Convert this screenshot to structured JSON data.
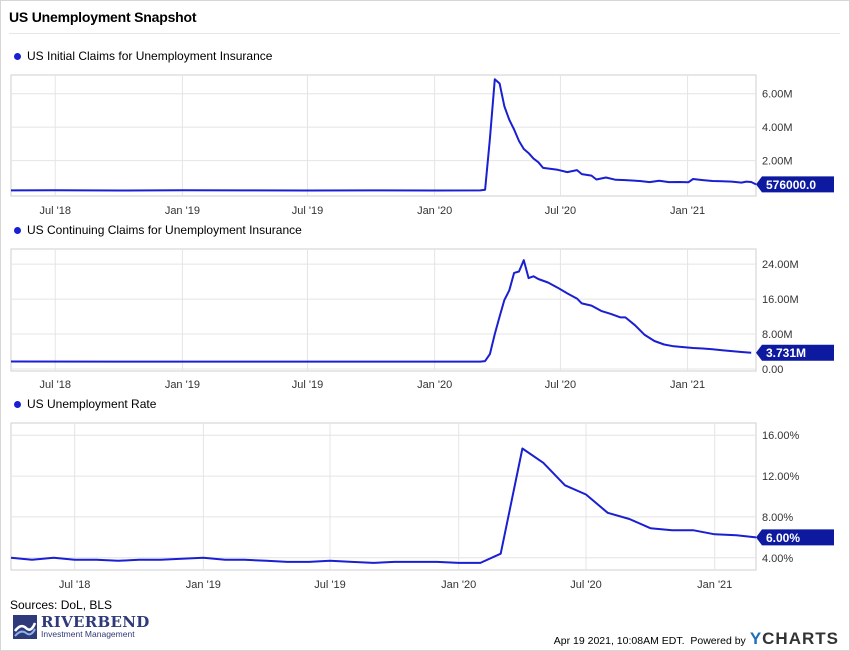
{
  "header": {
    "title": "US Unemployment Snapshot"
  },
  "colors": {
    "line": "#1a1fd1",
    "grid": "#e4e4e4",
    "axis_text": "#333333",
    "label_bg": "#0d1aa0",
    "label_text": "#ffffff"
  },
  "chart_data": [
    {
      "type": "line",
      "series": [
        {
          "name": "US Initial Claims for Unemployment Insurance"
        }
      ],
      "x_start": "2018-04-28",
      "x_end": "2021-04-10",
      "x_ticks": [
        {
          "date": "2018-07-01",
          "label": "Jul '18"
        },
        {
          "date": "2019-01-01",
          "label": "Jan '19"
        },
        {
          "date": "2019-07-01",
          "label": "Jul '19"
        },
        {
          "date": "2020-01-01",
          "label": "Jan '20"
        },
        {
          "date": "2020-07-01",
          "label": "Jul '20"
        },
        {
          "date": "2021-01-01",
          "label": "Jan '21"
        }
      ],
      "ylim": [
        0,
        7000000
      ],
      "y_ticks": [
        {
          "value": 2000000,
          "label": "2.00M"
        },
        {
          "value": 4000000,
          "label": "4.00M"
        },
        {
          "value": 6000000,
          "label": "6.00M"
        }
      ],
      "last_value_label": "576000.0",
      "points": [
        [
          "2018-04-28",
          215000
        ],
        [
          "2018-07-01",
          220000
        ],
        [
          "2018-10-01",
          212000
        ],
        [
          "2019-01-01",
          225000
        ],
        [
          "2019-04-01",
          215000
        ],
        [
          "2019-07-01",
          212000
        ],
        [
          "2019-10-01",
          215000
        ],
        [
          "2020-01-01",
          212000
        ],
        [
          "2020-03-07",
          215000
        ],
        [
          "2020-03-14",
          256000
        ],
        [
          "2020-03-21",
          3300000
        ],
        [
          "2020-03-28",
          6860000
        ],
        [
          "2020-04-04",
          6610000
        ],
        [
          "2020-04-11",
          5240000
        ],
        [
          "2020-04-18",
          4440000
        ],
        [
          "2020-04-25",
          3860000
        ],
        [
          "2020-05-02",
          3170000
        ],
        [
          "2020-05-09",
          2690000
        ],
        [
          "2020-05-16",
          2450000
        ],
        [
          "2020-05-23",
          2120000
        ],
        [
          "2020-05-30",
          1900000
        ],
        [
          "2020-06-06",
          1560000
        ],
        [
          "2020-06-27",
          1450000
        ],
        [
          "2020-07-11",
          1310000
        ],
        [
          "2020-07-25",
          1430000
        ],
        [
          "2020-08-01",
          1190000
        ],
        [
          "2020-08-15",
          1100000
        ],
        [
          "2020-08-22",
          870000
        ],
        [
          "2020-09-05",
          990000
        ],
        [
          "2020-09-19",
          850000
        ],
        [
          "2020-10-03",
          830000
        ],
        [
          "2020-10-24",
          780000
        ],
        [
          "2020-11-07",
          710000
        ],
        [
          "2020-11-21",
          790000
        ],
        [
          "2020-12-05",
          710000
        ],
        [
          "2020-12-19",
          720000
        ],
        [
          "2021-01-02",
          700000
        ],
        [
          "2021-01-09",
          900000
        ],
        [
          "2021-01-23",
          830000
        ],
        [
          "2021-02-06",
          780000
        ],
        [
          "2021-02-20",
          760000
        ],
        [
          "2021-03-06",
          740000
        ],
        [
          "2021-03-20",
          680000
        ],
        [
          "2021-03-27",
          740000
        ],
        [
          "2021-04-03",
          720000
        ],
        [
          "2021-04-10",
          576000
        ]
      ]
    },
    {
      "type": "line",
      "series": [
        {
          "name": "US Continuing Claims for Unemployment Insurance"
        }
      ],
      "x_start": "2018-04-28",
      "x_end": "2021-04-10",
      "x_ticks": [
        {
          "date": "2018-07-01",
          "label": "Jul '18"
        },
        {
          "date": "2019-01-01",
          "label": "Jan '19"
        },
        {
          "date": "2019-07-01",
          "label": "Jul '19"
        },
        {
          "date": "2020-01-01",
          "label": "Jan '20"
        },
        {
          "date": "2020-07-01",
          "label": "Jul '20"
        },
        {
          "date": "2021-01-01",
          "label": "Jan '21"
        }
      ],
      "ylim": [
        0,
        27000000
      ],
      "y_ticks": [
        {
          "value": 0,
          "label": "0.00"
        },
        {
          "value": 8000000,
          "label": "8.00M"
        },
        {
          "value": 16000000,
          "label": "16.00M"
        },
        {
          "value": 24000000,
          "label": "24.00M"
        }
      ],
      "last_value_label": "3.731M",
      "points": [
        [
          "2018-04-28",
          1720000
        ],
        [
          "2018-10-01",
          1690000
        ],
        [
          "2019-04-01",
          1690000
        ],
        [
          "2019-10-01",
          1690000
        ],
        [
          "2020-03-07",
          1700000
        ],
        [
          "2020-03-14",
          1800000
        ],
        [
          "2020-03-21",
          3400000
        ],
        [
          "2020-03-28",
          8000000
        ],
        [
          "2020-04-04",
          12000000
        ],
        [
          "2020-04-11",
          15800000
        ],
        [
          "2020-04-18",
          18000000
        ],
        [
          "2020-04-25",
          22000000
        ],
        [
          "2020-05-02",
          22300000
        ],
        [
          "2020-05-09",
          24900000
        ],
        [
          "2020-05-16",
          20800000
        ],
        [
          "2020-05-23",
          21200000
        ],
        [
          "2020-05-30",
          20600000
        ],
        [
          "2020-06-13",
          19800000
        ],
        [
          "2020-06-27",
          18600000
        ],
        [
          "2020-07-11",
          17300000
        ],
        [
          "2020-07-25",
          16100000
        ],
        [
          "2020-08-01",
          15000000
        ],
        [
          "2020-08-15",
          14500000
        ],
        [
          "2020-08-29",
          13300000
        ],
        [
          "2020-09-12",
          12600000
        ],
        [
          "2020-09-26",
          11800000
        ],
        [
          "2020-10-03",
          11800000
        ],
        [
          "2020-10-17",
          10000000
        ],
        [
          "2020-10-31",
          7800000
        ],
        [
          "2020-11-14",
          6400000
        ],
        [
          "2020-11-28",
          5600000
        ],
        [
          "2020-12-12",
          5200000
        ],
        [
          "2020-12-26",
          5000000
        ],
        [
          "2021-01-09",
          4800000
        ],
        [
          "2021-01-23",
          4700000
        ],
        [
          "2021-02-06",
          4500000
        ],
        [
          "2021-02-20",
          4300000
        ],
        [
          "2021-03-06",
          4100000
        ],
        [
          "2021-03-20",
          3900000
        ],
        [
          "2021-04-03",
          3731000
        ]
      ]
    },
    {
      "type": "line",
      "series": [
        {
          "name": "US Unemployment Rate"
        }
      ],
      "x_start": "2018-04-01",
      "x_end": "2021-03-01",
      "x_ticks": [
        {
          "date": "2018-07-01",
          "label": "Jul '18"
        },
        {
          "date": "2019-01-01",
          "label": "Jan '19"
        },
        {
          "date": "2019-07-01",
          "label": "Jul '19"
        },
        {
          "date": "2020-01-01",
          "label": "Jan '20"
        },
        {
          "date": "2020-07-01",
          "label": "Jul '20"
        },
        {
          "date": "2021-01-01",
          "label": "Jan '21"
        }
      ],
      "ylim": [
        3,
        17
      ],
      "y_ticks": [
        {
          "value": 4,
          "label": "4.00%"
        },
        {
          "value": 8,
          "label": "8.00%"
        },
        {
          "value": 12,
          "label": "12.00%"
        },
        {
          "value": 16,
          "label": "16.00%"
        }
      ],
      "last_value_label": "6.00%",
      "points": [
        [
          "2018-04-01",
          4.0
        ],
        [
          "2018-05-01",
          3.8
        ],
        [
          "2018-06-01",
          4.0
        ],
        [
          "2018-07-01",
          3.8
        ],
        [
          "2018-08-01",
          3.8
        ],
        [
          "2018-09-01",
          3.7
        ],
        [
          "2018-10-01",
          3.8
        ],
        [
          "2018-11-01",
          3.8
        ],
        [
          "2018-12-01",
          3.9
        ],
        [
          "2019-01-01",
          4.0
        ],
        [
          "2019-02-01",
          3.8
        ],
        [
          "2019-03-01",
          3.8
        ],
        [
          "2019-04-01",
          3.7
        ],
        [
          "2019-05-01",
          3.6
        ],
        [
          "2019-06-01",
          3.6
        ],
        [
          "2019-07-01",
          3.7
        ],
        [
          "2019-08-01",
          3.6
        ],
        [
          "2019-09-01",
          3.5
        ],
        [
          "2019-10-01",
          3.6
        ],
        [
          "2019-11-01",
          3.6
        ],
        [
          "2019-12-01",
          3.6
        ],
        [
          "2020-01-01",
          3.5
        ],
        [
          "2020-02-01",
          3.5
        ],
        [
          "2020-03-01",
          4.4
        ],
        [
          "2020-04-01",
          14.7
        ],
        [
          "2020-05-01",
          13.3
        ],
        [
          "2020-06-01",
          11.1
        ],
        [
          "2020-07-01",
          10.2
        ],
        [
          "2020-08-01",
          8.4
        ],
        [
          "2020-09-01",
          7.8
        ],
        [
          "2020-10-01",
          6.9
        ],
        [
          "2020-11-01",
          6.7
        ],
        [
          "2020-12-01",
          6.7
        ],
        [
          "2021-01-01",
          6.3
        ],
        [
          "2021-02-01",
          6.2
        ],
        [
          "2021-03-01",
          6.0
        ]
      ]
    }
  ],
  "footer": {
    "sources": "Sources: DoL, BLS",
    "timestamp": "Apr 19 2021, 10:08AM EDT.",
    "powered_by": "Powered by",
    "brand_y": "Y",
    "brand_rest": "CHARTS",
    "logo_word": "RIVERBEND",
    "logo_sub": "Investment Management"
  }
}
